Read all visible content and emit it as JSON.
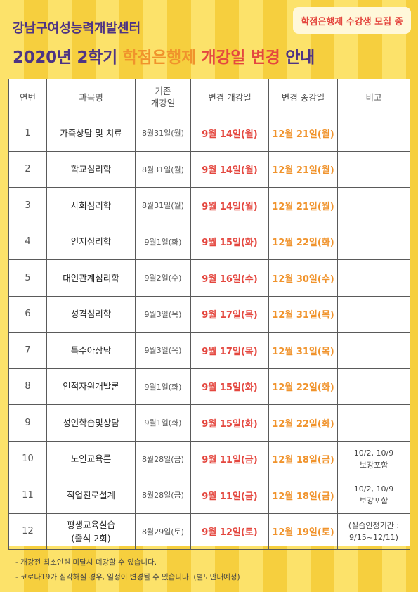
{
  "badge": "학점은행제 수강생 모집 중",
  "org": "강남구여성능력개발센터",
  "title": {
    "part1": "2020년 2학기 ",
    "part2": "학점은행제 ",
    "part3": "개강일 변경",
    "part4": " 안내"
  },
  "table": {
    "headers": {
      "no": "연번",
      "subject": "과목명",
      "orig_line1": "기존",
      "orig_line2": "개강일",
      "start": "변경 개강일",
      "end": "변경 종강일",
      "note": "비고"
    },
    "rows": [
      {
        "no": "1",
        "subject": "가족상담 및 치료",
        "orig": "8월31일(월)",
        "start": "9월 14일(월)",
        "end": "12월 21일(월)",
        "note1": "",
        "note2": ""
      },
      {
        "no": "2",
        "subject": "학교심리학",
        "orig": "8월31일(월)",
        "start": "9월 14일(월)",
        "end": "12월 21일(월)",
        "note1": "",
        "note2": ""
      },
      {
        "no": "3",
        "subject": "사회심리학",
        "orig": "8월31일(월)",
        "start": "9월 14일(월)",
        "end": "12월 21일(월)",
        "note1": "",
        "note2": ""
      },
      {
        "no": "4",
        "subject": "인지심리학",
        "orig": "9월1일(화)",
        "start": "9월 15일(화)",
        "end": "12월 22일(화)",
        "note1": "",
        "note2": ""
      },
      {
        "no": "5",
        "subject": "대인관계심리학",
        "orig": "9월2일(수)",
        "start": "9월 16일(수)",
        "end": "12월 30일(수)",
        "note1": "",
        "note2": ""
      },
      {
        "no": "6",
        "subject": "성격심리학",
        "orig": "9월3일(목)",
        "start": "9월 17일(목)",
        "end": "12월 31일(목)",
        "note1": "",
        "note2": ""
      },
      {
        "no": "7",
        "subject": "특수아상담",
        "orig": "9월3일(목)",
        "start": "9월 17일(목)",
        "end": "12월 31일(목)",
        "note1": "",
        "note2": ""
      },
      {
        "no": "8",
        "subject": "인적자원개발론",
        "orig": "9월1일(화)",
        "start": "9월 15일(화)",
        "end": "12월 22일(화)",
        "note1": "",
        "note2": ""
      },
      {
        "no": "9",
        "subject": "성인학습및상담",
        "orig": "9월1일(화)",
        "start": "9월 15일(화)",
        "end": "12월 22일(화)",
        "note1": "",
        "note2": ""
      },
      {
        "no": "10",
        "subject": "노인교육론",
        "orig": "8월28일(금)",
        "start": "9월 11일(금)",
        "end": "12월 18일(금)",
        "note1": "10/2, 10/9",
        "note2": "보강포함"
      },
      {
        "no": "11",
        "subject": "직업진로설계",
        "orig": "8월28일(금)",
        "start": "9월 11일(금)",
        "end": "12월 18일(금)",
        "note1": "10/2, 10/9",
        "note2": "보강포함"
      },
      {
        "no": "12",
        "subject": "평생교육실습",
        "subject2": "(출석 2회)",
        "orig": "8월29일(토)",
        "start": "9월 12일(토)",
        "end": "12월 19일(토)",
        "note1": "(실습인정기간 :",
        "note2": "9/15~12/11)"
      }
    ]
  },
  "footer": {
    "line1": "- 개강전 최소인원 미달시 폐강할 수 있습니다.",
    "line2": "- 코로나19가 심각해질 경우, 일정이 변경될 수 있습니다. (별도안내예정)"
  },
  "colors": {
    "purple": "#4E3484",
    "orange": "#F0932C",
    "red": "#E4473F",
    "stripe_light": "#FCE26A",
    "stripe_dark": "#F6CF3E"
  }
}
